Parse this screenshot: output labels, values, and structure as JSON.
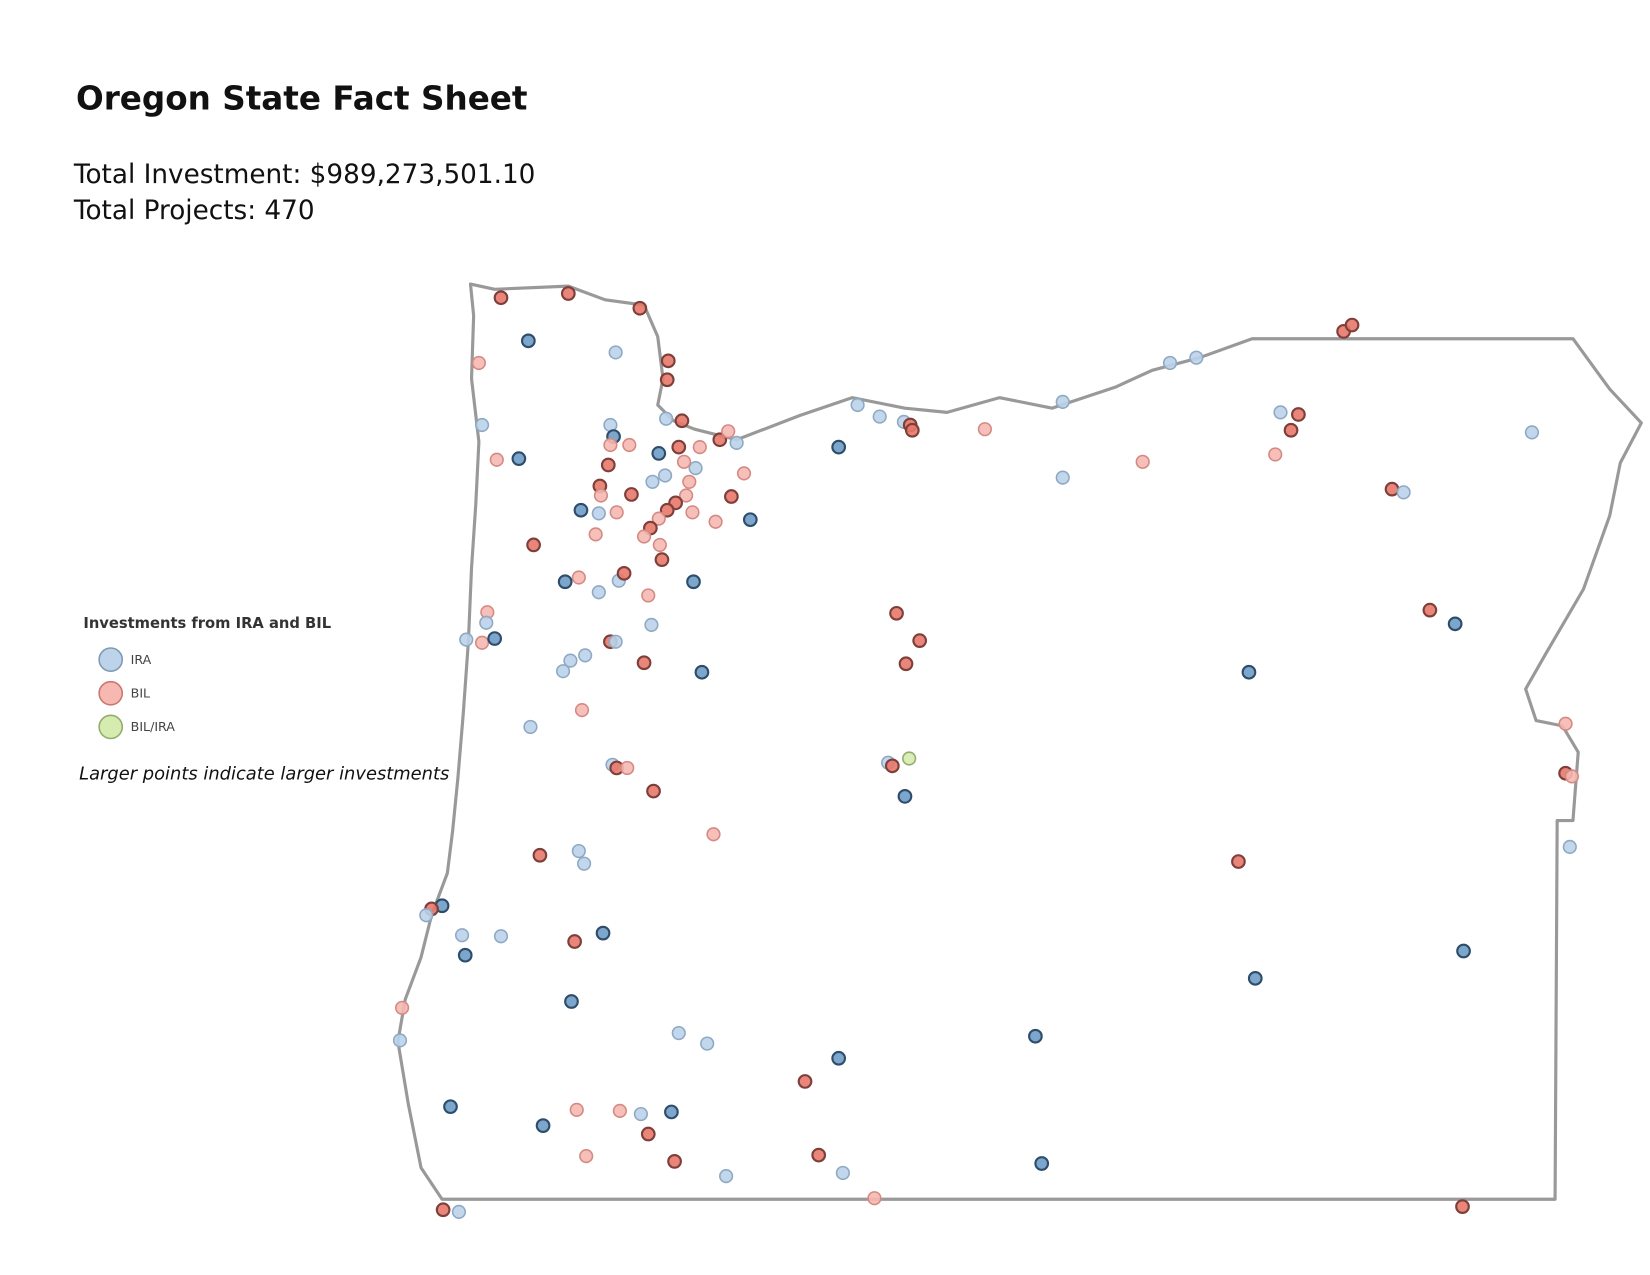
{
  "header": {
    "title": "Oregon State Fact Sheet"
  },
  "stats": [
    {
      "label": "Total Investment:",
      "value": "$989,273,501.10"
    },
    {
      "label": "Total Projects:",
      "value": "470"
    }
  ],
  "legend": {
    "title": "Investments from IRA and BIL",
    "items": [
      "IRA",
      "BIL",
      "BIL/IRA"
    ],
    "note": "Larger points indicate larger investments"
  }
}
